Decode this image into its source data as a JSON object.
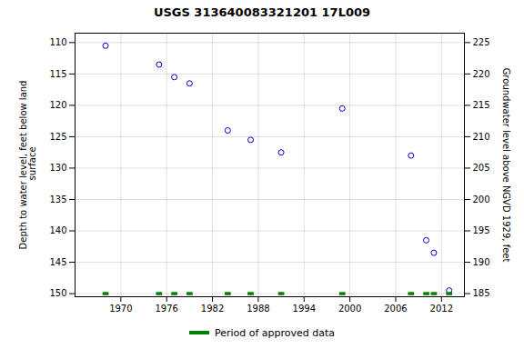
{
  "chart_data": {
    "type": "scatter",
    "title": "USGS 313640083321201 17L009",
    "ylabel": "Depth to water level, feet below land\n surface",
    "y2label": "Groundwater level above NGVD 1929, feet",
    "series": [
      {
        "type": "scatter",
        "marker": "circle",
        "color": "#0000cc",
        "x": [
          1968,
          1975,
          1977,
          1979,
          1984,
          1987,
          1991,
          1999,
          2008,
          2010,
          2011,
          2013
        ],
        "values": [
          110.5,
          113.5,
          115.5,
          116.5,
          124.0,
          125.5,
          127.5,
          120.5,
          128.0,
          141.5,
          143.5,
          149.5
        ]
      },
      {
        "name": "Period of approved data",
        "type": "tick",
        "color": "#008000",
        "x": [
          1968,
          1975,
          1977,
          1979,
          1984,
          1987,
          1991,
          1999,
          2008,
          2010,
          2011,
          2013
        ],
        "values": [
          150,
          150,
          150,
          150,
          150,
          150,
          150,
          150,
          150,
          150,
          150,
          150
        ]
      }
    ],
    "xlim": [
      1964,
      2015
    ],
    "xticks": [
      1970,
      1976,
      1982,
      1988,
      1994,
      2000,
      2006,
      2012
    ],
    "ylim": [
      150.5,
      108.5
    ],
    "yticks": [
      110,
      115,
      120,
      125,
      130,
      135,
      140,
      145,
      150
    ],
    "y2lim": [
      184.5,
      226.5
    ],
    "y2ticks": [
      225,
      220,
      215,
      210,
      205,
      200,
      195,
      190,
      185
    ],
    "grid": true,
    "legend": "bottom"
  }
}
